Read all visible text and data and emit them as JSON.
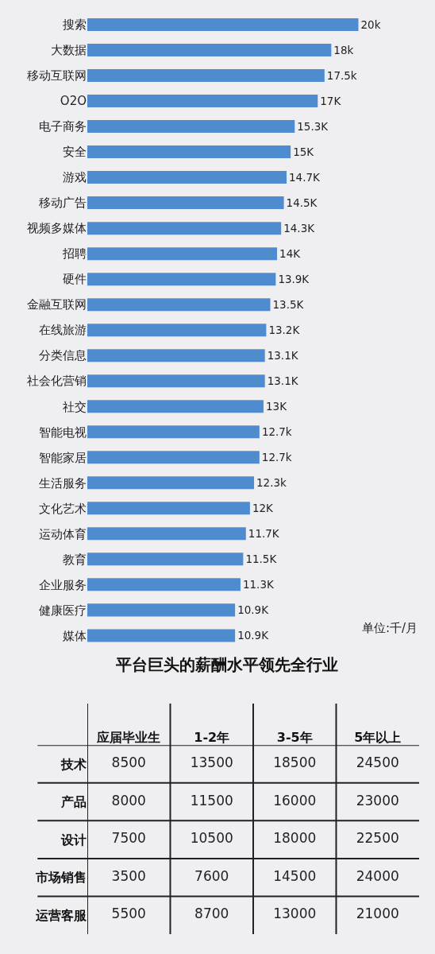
{
  "chart_data": [
    {
      "type": "bar",
      "orientation": "horizontal",
      "color": "#4f8ccf",
      "tick_labels": "y",
      "categories": [
        "搜索",
        "大数据",
        "移动互联网",
        "O2O",
        "电子商务",
        "安全",
        "游戏",
        "移动广告",
        "视频多媒体",
        "招聘",
        "硬件",
        "金融互联网",
        "在线旅游",
        "分类信息",
        "社会化营销",
        "社交",
        "智能电视",
        "智能家居",
        "生活服务",
        "文化艺术",
        "运动体育",
        "教育",
        "企业服务",
        "健康医疗",
        "媒体"
      ],
      "values": [
        20,
        18,
        17.5,
        17,
        15.3,
        15,
        14.7,
        14.5,
        14.3,
        14,
        13.9,
        13.5,
        13.2,
        13.1,
        13.1,
        13,
        12.7,
        12.7,
        12.3,
        12,
        11.7,
        11.5,
        11.3,
        10.9,
        10.9
      ],
      "value_labels": [
        "20k",
        "18k",
        "17.5k",
        "17K",
        "15.3K",
        "15K",
        "14.7K",
        "14.5K",
        "14.3K",
        "14K",
        "13.9K",
        "13.5K",
        "13.2K",
        "13.1K",
        "13.1K",
        "13K",
        "12.7k",
        "12.7k",
        "12.3k",
        "12K",
        "11.7K",
        "11.5K",
        "11.3K",
        "10.9K",
        "10.9K"
      ],
      "annotations": [
        "单位:千/月"
      ]
    },
    {
      "type": "heatmap",
      "title": "平台巨头的薪酬水平领先全行业",
      "data_labels": true,
      "categories": [
        "应届毕业生",
        "1-2年",
        "3-5年",
        "5年以上"
      ],
      "y_categories": [
        "技术",
        "产品",
        "设计",
        "市场销售",
        "运营客服"
      ],
      "cells": [
        [
          8500,
          13500,
          18500,
          24500
        ],
        [
          8000,
          11500,
          16000,
          23000
        ],
        [
          7500,
          10500,
          18000,
          22500
        ],
        [
          3500,
          7600,
          14500,
          24000
        ],
        [
          5500,
          8700,
          13000,
          21000
        ]
      ]
    }
  ]
}
